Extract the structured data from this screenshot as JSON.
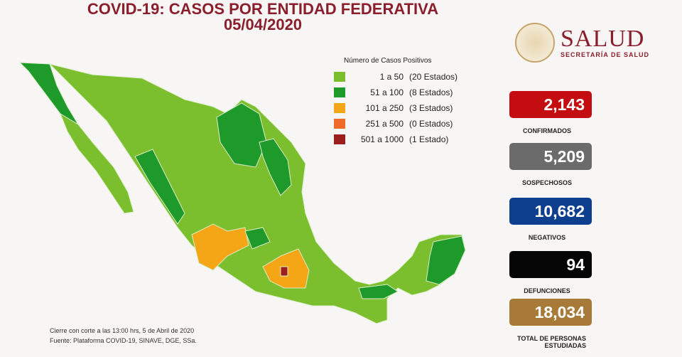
{
  "header": {
    "title": "COVID-19: CASOS POR ENTIDAD FEDERATIVA",
    "date": "05/04/2020"
  },
  "logo": {
    "name": "SALUD",
    "subtitle": "SECRETARÍA DE SALUD"
  },
  "legend": {
    "title": "Número de Casos Positivos",
    "items": [
      {
        "range": "1 a 50",
        "count": "(20 Estados)",
        "color": "#7cbf2e"
      },
      {
        "range": "51 a 100",
        "count": "(8 Estados)",
        "color": "#1e9a2a"
      },
      {
        "range": "101 a 250",
        "count": "(3 Estados)",
        "color": "#f5a617"
      },
      {
        "range": "251 a 500",
        "count": "(0 Estados)",
        "color": "#f06a2a"
      },
      {
        "range": "501 a 1000",
        "count": "(1 Estado)",
        "color": "#9b1f1f"
      }
    ]
  },
  "stats": [
    {
      "value": "2,143",
      "label": "CONFIRMADOS",
      "color": "#c40d10"
    },
    {
      "value": "5,209",
      "label": "SOSPECHOSOS",
      "color": "#6b6b6b"
    },
    {
      "value": "10,682",
      "label": "NEGATIVOS",
      "color": "#0e3f8f"
    },
    {
      "value": "94",
      "label": "DEFUNCIONES",
      "color": "#050505"
    },
    {
      "value": "18,034",
      "label": "TOTAL DE PERSONAS ESTUDIADAS",
      "color": "#a77a3a"
    }
  ],
  "footer": {
    "cutoff": "Cierre con corte a las 13:00 hrs, 5 de Abril de 2020",
    "source": "Fuente: Plataforma COVID-19, SINAVE, DGE, SSa."
  }
}
